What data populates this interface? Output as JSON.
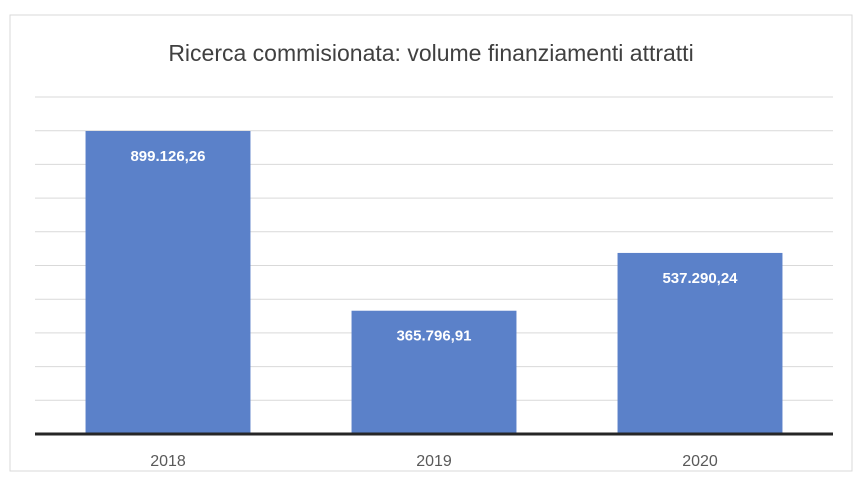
{
  "chart_data": {
    "type": "bar",
    "title": "Ricerca commisionata: volume finanziamenti attratti",
    "categories": [
      "2018",
      "2019",
      "2020"
    ],
    "values": [
      899126.26,
      365796.91,
      537290.24
    ],
    "value_labels": [
      "899.126,26",
      "365.796,91",
      "537.290,24"
    ],
    "color": "#5b81c9",
    "ylim": [
      0,
      1000000
    ],
    "yticks": [
      0,
      100000,
      200000,
      300000,
      400000,
      500000,
      600000,
      700000,
      800000,
      900000,
      1000000
    ],
    "grid": true
  }
}
